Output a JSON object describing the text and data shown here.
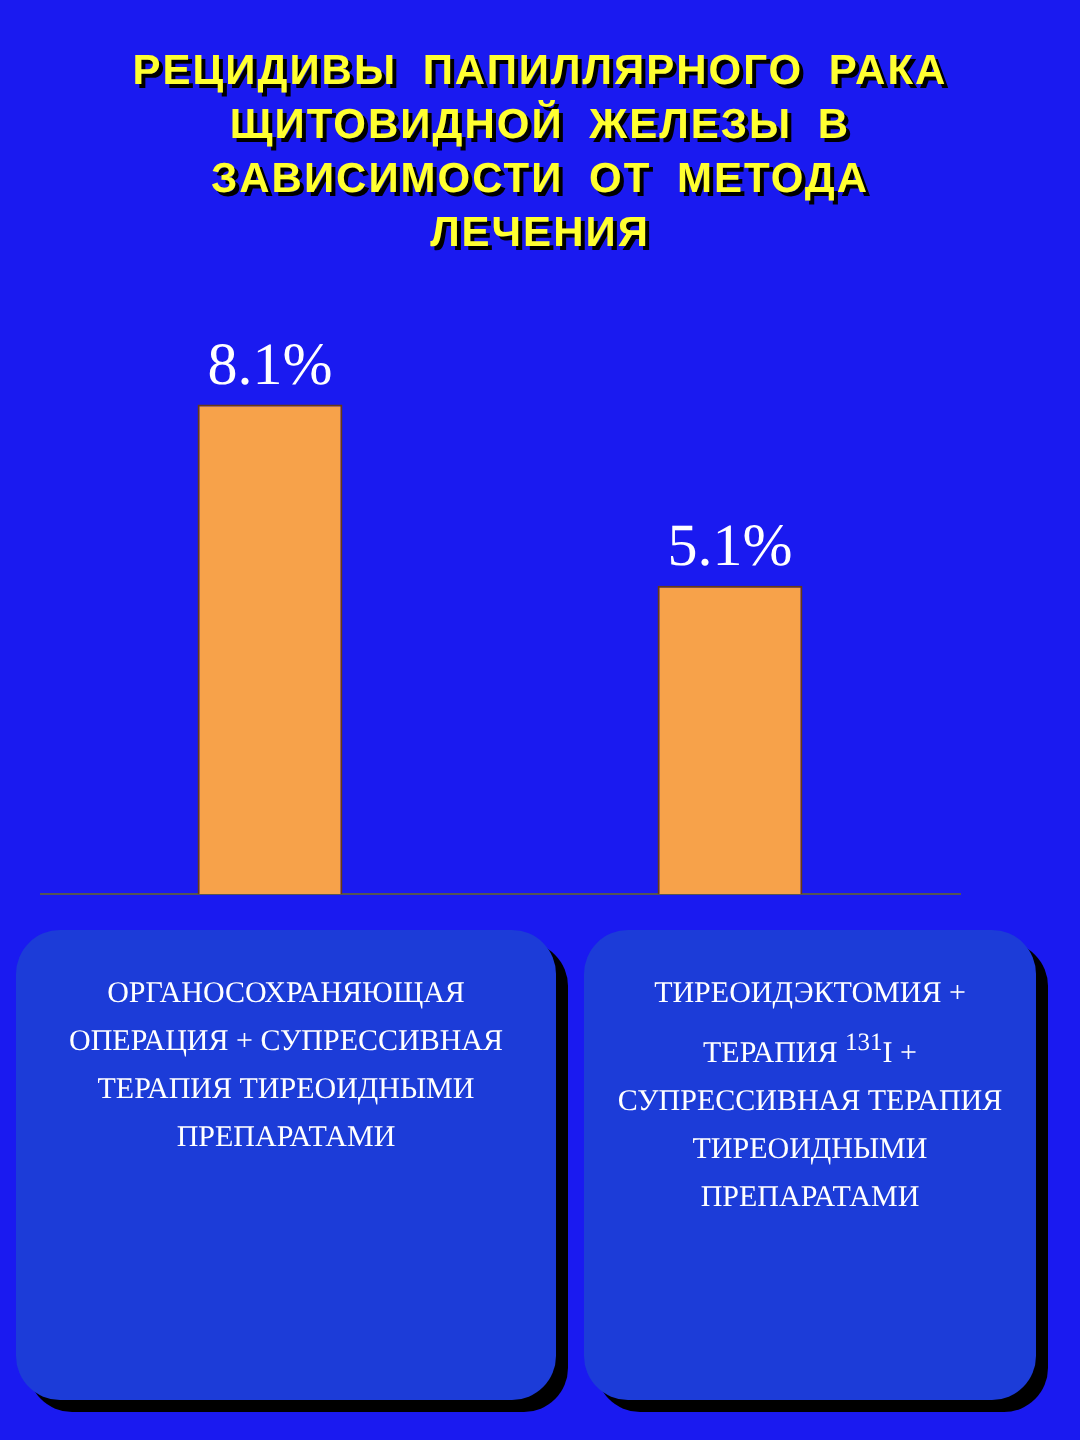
{
  "chart_data": {
    "type": "bar",
    "title": "РЕЦИДИВЫ ПАПИЛЛЯРНОГО РАКА ЩИТОВИДНОЙ ЖЕЛЕЗЫ В ЗАВИСИМОСТИ ОТ МЕТОДА ЛЕЧЕНИЯ",
    "categories": [
      "ОРГАНОСОХРАНЯЮЩАЯ ОПЕРАЦИЯ + СУПРЕССИВНАЯ ТЕРАПИЯ ТИРЕОИДНЫМИ ПРЕПАРАТАМИ",
      "ТИРЕОИДЭКТОМИЯ + ТЕРАПИЯ $^{131}$I + СУПРЕССИВНАЯ ТЕРАПИЯ ТИРЕОИДНЫМИ ПРЕПАРАТАМИ"
    ],
    "values": [
      8.1,
      5.1
    ],
    "value_labels": [
      "8.1%",
      "5.1%"
    ],
    "color": "#f7a24a"
  }
}
